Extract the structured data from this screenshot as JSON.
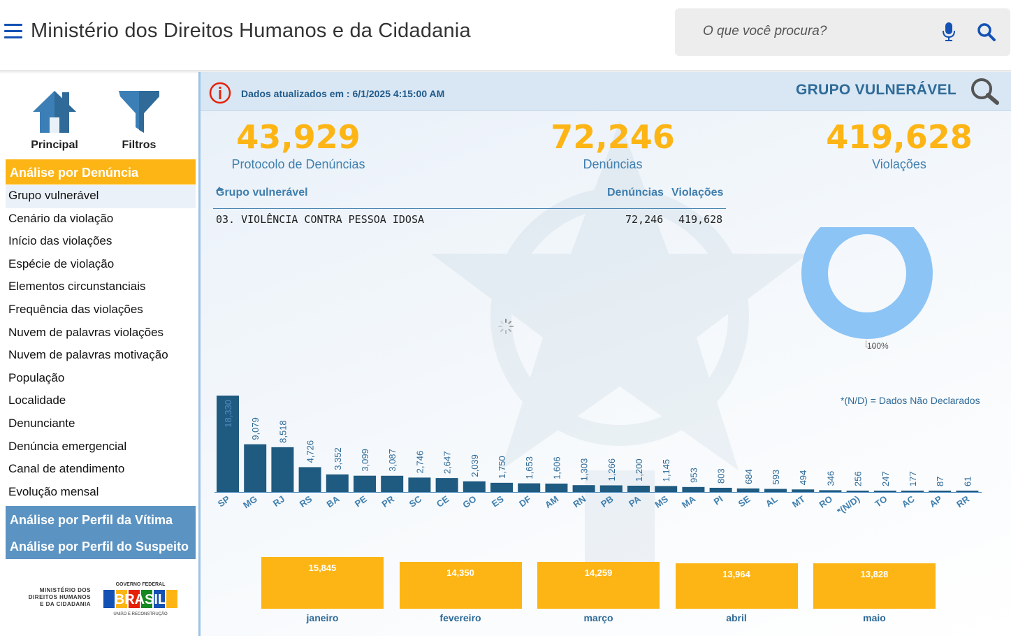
{
  "header": {
    "title": "Ministério dos Direitos Humanos e da Cidadania",
    "search_placeholder": "O que você procura?",
    "menu_icon": "hamburger-menu-icon",
    "mic_icon": "microphone-icon",
    "search_icon": "search-icon",
    "brand_color": "#1351b4"
  },
  "sidebar": {
    "top_buttons": [
      {
        "label": "Principal",
        "icon": "home-icon"
      },
      {
        "label": "Filtros",
        "icon": "funnel-filter-icon"
      }
    ],
    "active_section": "Análise por Denúncia",
    "items": [
      {
        "label": "Grupo vulnerável",
        "selected": true
      },
      {
        "label": "Cenário da violação"
      },
      {
        "label": "Início das violações"
      },
      {
        "label": "Espécie de violação"
      },
      {
        "label": "Elementos circunstanciais"
      },
      {
        "label": "Frequência das violações"
      },
      {
        "label": "Nuvem de palavras violações"
      },
      {
        "label": "Nuvem de palavras motivação"
      },
      {
        "label": "População"
      },
      {
        "label": "Localidade"
      },
      {
        "label": "Denunciante"
      },
      {
        "label": "Denúncia emergencial"
      },
      {
        "label": "Canal de atendimento"
      },
      {
        "label": "Evolução mensal"
      }
    ],
    "sections": [
      {
        "label": "Análise por Perfil da Vítima"
      },
      {
        "label": "Análise por Perfil do Suspeito"
      }
    ],
    "logo_ministry_lines": [
      "MINISTÉRIO DOS",
      "DIREITOS HUMANOS",
      "E DA CIDADANIA"
    ],
    "logo_gov_top": "GOVERNO FEDERAL",
    "logo_gov_word": "BRASIL",
    "logo_gov_bottom": "UNIÃO E RECONSTRUÇÃO",
    "section_color": "#5b93c2",
    "active_color": "#fdb515"
  },
  "main": {
    "updated_text": "Dados atualizados em : 6/1/2025 4:15:00 AM",
    "info_icon": "info-alert-icon",
    "group_title": "GRUPO VULNERÁVEL",
    "magnify_icon": "magnifier-icon",
    "kpis": [
      {
        "value": "43,929",
        "label": "Protocolo de Denúncias"
      },
      {
        "value": "72,246",
        "label": "Denúncias"
      },
      {
        "value": "419,628",
        "label": "Violações"
      }
    ],
    "table": {
      "headers": [
        "Grupo vulnerável",
        "Denúncias",
        "Violações"
      ],
      "rows": [
        {
          "group": "03. VIOLÊNCIA CONTRA PESSOA IDOSA",
          "denuncias": "72,246",
          "violacoes": "419,628"
        }
      ]
    },
    "donut": {
      "percent_label": "100%",
      "fraction": 1.0,
      "color": "#8cc4f5"
    },
    "spinner_icon": "loading-spinner-icon",
    "nd_note": "*(N/D) = Dados Não Declarados"
  },
  "chart_data": [
    {
      "type": "bar",
      "categories": [
        "SP",
        "MG",
        "RJ",
        "RS",
        "BA",
        "PE",
        "PR",
        "SC",
        "CE",
        "GO",
        "ES",
        "DF",
        "AM",
        "RN",
        "PB",
        "PA",
        "MS",
        "MA",
        "PI",
        "SE",
        "AL",
        "MT",
        "RO",
        "*(N/D)",
        "TO",
        "AC",
        "AP",
        "RR"
      ],
      "values": [
        18330,
        9079,
        8518,
        4726,
        3352,
        3099,
        3087,
        2746,
        2647,
        2039,
        1750,
        1653,
        1606,
        1303,
        1266,
        1200,
        1145,
        953,
        803,
        684,
        593,
        494,
        346,
        256,
        247,
        177,
        87,
        61
      ],
      "labels": [
        "18,330",
        "9,079",
        "8,518",
        "4,726",
        "3,352",
        "3,099",
        "3,087",
        "2,746",
        "2,647",
        "2,039",
        "1,750",
        "1,653",
        "1,606",
        "1,303",
        "1,266",
        "1,200",
        "1,145",
        "953",
        "803",
        "684",
        "593",
        "494",
        "346",
        "256",
        "247",
        "177",
        "87",
        "61"
      ],
      "bar_color": "#1f5a80",
      "label_color": "#2e6a97"
    },
    {
      "type": "bar",
      "categories": [
        "janeiro",
        "fevereiro",
        "março",
        "abril",
        "maio"
      ],
      "values": [
        15845,
        14350,
        14259,
        13964,
        13828
      ],
      "labels": [
        "15,845",
        "14,350",
        "14,259",
        "13,964",
        "13,828"
      ],
      "bar_color": "#fdb515"
    }
  ]
}
